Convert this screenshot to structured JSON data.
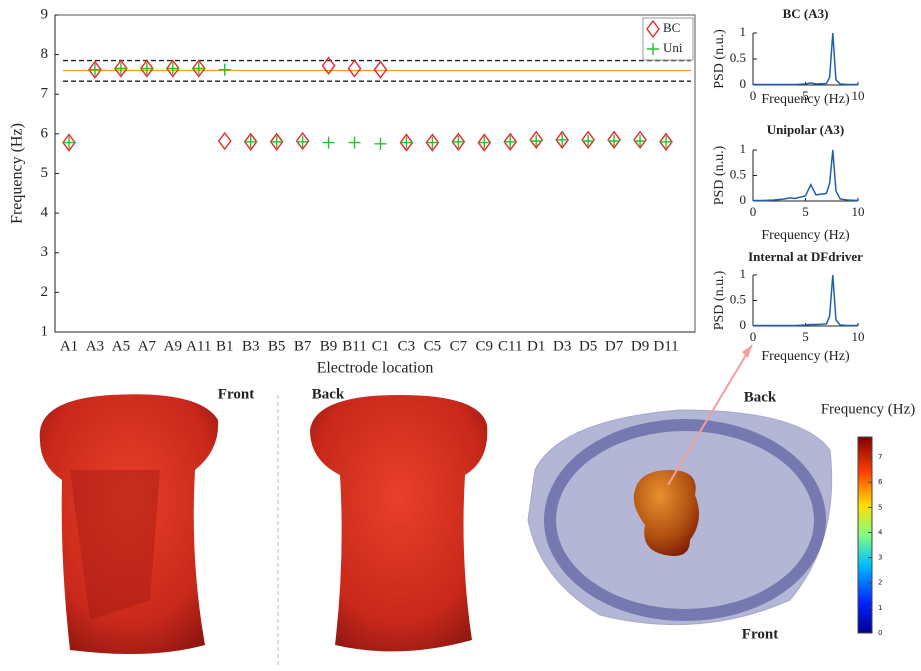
{
  "chart_data": [
    {
      "type": "scatter",
      "ylabel": "Frequency (Hz)",
      "xlabel": "Electrode location",
      "categories": [
        "A1",
        "A3",
        "A5",
        "A7",
        "A9",
        "A11",
        "B1",
        "B3",
        "B5",
        "B7",
        "B9",
        "B11",
        "C1",
        "C3",
        "C5",
        "C7",
        "C9",
        "C11",
        "D1",
        "D3",
        "D5",
        "D7",
        "D9",
        "D11"
      ],
      "series": [
        {
          "name": "BC",
          "color": "#e8262b",
          "marker": "diamond",
          "values": [
            5.78,
            7.62,
            7.65,
            7.65,
            7.65,
            7.65,
            5.82,
            5.8,
            5.8,
            5.82,
            7.72,
            7.65,
            7.62,
            5.78,
            5.78,
            5.8,
            5.78,
            5.8,
            5.85,
            5.85,
            5.85,
            5.85,
            5.85,
            5.8
          ]
        },
        {
          "name": "Uni",
          "color": "#22c02a",
          "marker": "plus",
          "values": [
            5.78,
            7.62,
            7.65,
            7.65,
            7.65,
            7.65,
            7.62,
            5.8,
            5.8,
            5.8,
            5.78,
            5.78,
            5.75,
            5.78,
            5.78,
            5.8,
            5.78,
            5.8,
            5.82,
            5.85,
            5.82,
            5.82,
            5.82,
            5.8
          ]
        }
      ],
      "reference_lines": [
        {
          "value": 7.6,
          "color": "#f0a020",
          "style": "solid"
        },
        {
          "value": 7.85,
          "color": "#222222",
          "style": "dashed"
        },
        {
          "value": 7.33,
          "color": "#222222",
          "style": "dashed"
        }
      ],
      "ylim": [
        1,
        9
      ],
      "yticks": [
        1,
        2,
        3,
        4,
        5,
        6,
        7,
        8,
        9
      ],
      "legend": "upper right"
    },
    {
      "type": "line",
      "title": "BC (A3)",
      "ylabel": "PSD (n.u.)",
      "xlabel": "Frequency (Hz)",
      "x": [
        0,
        1,
        2,
        3,
        4,
        5,
        5.5,
        6,
        7,
        7.3,
        7.6,
        7.9,
        8.3,
        9,
        10
      ],
      "series": [
        {
          "color": "#1f5fb0",
          "values": [
            0.01,
            0.01,
            0.01,
            0.01,
            0.01,
            0.02,
            0.04,
            0.02,
            0.03,
            0.15,
            1,
            0.1,
            0.02,
            0.01,
            0.01
          ]
        }
      ],
      "xlim": [
        0,
        10
      ],
      "xticks": [
        0,
        5,
        10
      ],
      "ylim": [
        0,
        1
      ],
      "yticks": [
        0,
        0.5,
        1
      ]
    },
    {
      "type": "line",
      "title": "Unipolar (A3)",
      "ylabel": "PSD (n.u.)",
      "xlabel": "Frequency (Hz)",
      "x": [
        0,
        1,
        2,
        3,
        3.5,
        4,
        5,
        5.5,
        6,
        7,
        7.3,
        7.6,
        7.9,
        8.3,
        9,
        10
      ],
      "series": [
        {
          "color": "#1f5fb0",
          "values": [
            0.01,
            0.01,
            0.02,
            0.04,
            0.06,
            0.05,
            0.1,
            0.32,
            0.12,
            0.15,
            0.35,
            1,
            0.2,
            0.04,
            0.02,
            0.01
          ]
        }
      ],
      "xlim": [
        0,
        10
      ],
      "xticks": [
        0,
        5,
        10
      ],
      "ylim": [
        0,
        1
      ],
      "yticks": [
        0,
        0.5,
        1
      ]
    },
    {
      "type": "line",
      "title": "Internal at DFdriver",
      "ylabel": "PSD (n.u.)",
      "xlabel": "Frequency (Hz)",
      "x": [
        0,
        1,
        2,
        3,
        4,
        5,
        5.5,
        6,
        7,
        7.3,
        7.6,
        7.9,
        8.3,
        9,
        10
      ],
      "series": [
        {
          "color": "#1f5fb0",
          "values": [
            0.01,
            0.01,
            0.01,
            0.01,
            0.01,
            0.02,
            0.03,
            0.03,
            0.04,
            0.2,
            1,
            0.12,
            0.02,
            0.01,
            0.01
          ]
        }
      ],
      "xlim": [
        0,
        10
      ],
      "xticks": [
        0,
        5,
        10
      ],
      "ylim": [
        0,
        1
      ],
      "yticks": [
        0,
        0.5,
        1
      ]
    }
  ],
  "images": {
    "torso_front_label": "Front",
    "torso_back_label": "Back",
    "heart_top_label": "Back",
    "heart_bottom_label": "Front"
  },
  "colorbar": {
    "title": "Frequency (Hz)",
    "lim": [
      0,
      7.8
    ],
    "ticks": [
      0,
      1,
      2,
      3,
      4,
      5,
      6,
      7
    ]
  }
}
